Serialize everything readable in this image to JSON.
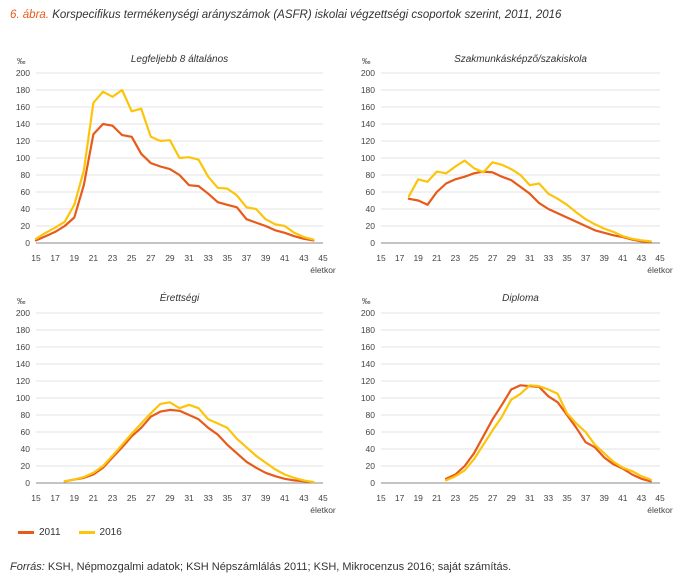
{
  "figure": {
    "number": "6. ábra.",
    "title": "Korspecifikus termékenységi arányszámok (ASFR) iskolai végzettségi csoportok szerint, 2011, 2016"
  },
  "colors": {
    "s2011": "#e85a1a",
    "s2016": "#fcc40a",
    "grid": "#e3e3e3",
    "axis": "#888888"
  },
  "legend": [
    {
      "label": "2011",
      "color": "#e85a1a"
    },
    {
      "label": "2016",
      "color": "#fcc40a"
    }
  ],
  "source": {
    "lead": "Forrás:",
    "text": " KSH, Népmozgalmi adatok; KSH Népszámlálás 2011; KSH, Mikrocenzus 2016; saját számítás."
  },
  "chart_data": [
    {
      "type": "line",
      "title": "Legfeljebb 8 általános",
      "ylabel": "‰",
      "xlabel": "életkor",
      "xlim": [
        15,
        45
      ],
      "ylim": [
        0,
        200
      ],
      "xticks": [
        15,
        17,
        19,
        21,
        23,
        25,
        27,
        29,
        31,
        33,
        35,
        37,
        39,
        41,
        43,
        45
      ],
      "yticks": [
        0,
        20,
        40,
        60,
        80,
        100,
        120,
        140,
        160,
        180,
        200
      ],
      "series": [
        {
          "name": "2011",
          "x": [
            15,
            16,
            17,
            18,
            19,
            20,
            21,
            22,
            23,
            24,
            25,
            26,
            27,
            28,
            29,
            30,
            31,
            32,
            33,
            34,
            35,
            36,
            37,
            38,
            39,
            40,
            41,
            42,
            43,
            44
          ],
          "values": [
            3,
            8,
            13,
            20,
            30,
            68,
            128,
            140,
            138,
            127,
            125,
            105,
            94,
            90,
            87,
            80,
            68,
            67,
            58,
            48,
            45,
            42,
            28,
            24,
            20,
            15,
            12,
            8,
            5,
            3
          ]
        },
        {
          "name": "2016",
          "x": [
            15,
            16,
            17,
            18,
            19,
            20,
            21,
            22,
            23,
            24,
            25,
            26,
            27,
            28,
            29,
            30,
            31,
            32,
            33,
            34,
            35,
            36,
            37,
            38,
            39,
            40,
            41,
            42,
            43,
            44
          ],
          "values": [
            5,
            12,
            18,
            25,
            45,
            85,
            165,
            178,
            172,
            180,
            155,
            158,
            125,
            120,
            121,
            100,
            101,
            98,
            78,
            65,
            64,
            56,
            42,
            40,
            28,
            22,
            20,
            12,
            7,
            4
          ]
        }
      ]
    },
    {
      "type": "line",
      "title": "Szakmunkásképző/szakiskola",
      "ylabel": "‰",
      "xlabel": "életkor",
      "xlim": [
        15,
        45
      ],
      "ylim": [
        0,
        200
      ],
      "xticks": [
        15,
        17,
        19,
        21,
        23,
        25,
        27,
        29,
        31,
        33,
        35,
        37,
        39,
        41,
        43,
        45
      ],
      "yticks": [
        0,
        20,
        40,
        60,
        80,
        100,
        120,
        140,
        160,
        180,
        200
      ],
      "series": [
        {
          "name": "2011",
          "x": [
            18,
            19,
            20,
            21,
            22,
            23,
            24,
            25,
            26,
            27,
            28,
            29,
            30,
            31,
            32,
            33,
            34,
            35,
            36,
            37,
            38,
            39,
            40,
            41,
            42,
            43,
            44
          ],
          "values": [
            52,
            50,
            45,
            60,
            70,
            75,
            78,
            82,
            84,
            83,
            78,
            74,
            66,
            58,
            47,
            40,
            35,
            30,
            25,
            20,
            15,
            12,
            9,
            7,
            4,
            2,
            1
          ]
        },
        {
          "name": "2016",
          "x": [
            18,
            19,
            20,
            21,
            22,
            23,
            24,
            25,
            26,
            27,
            28,
            29,
            30,
            31,
            32,
            33,
            34,
            35,
            36,
            37,
            38,
            39,
            40,
            41,
            42,
            43,
            44
          ],
          "values": [
            55,
            75,
            72,
            84,
            82,
            90,
            97,
            88,
            83,
            95,
            92,
            87,
            80,
            68,
            70,
            58,
            52,
            45,
            36,
            28,
            22,
            17,
            13,
            8,
            5,
            3,
            2
          ]
        }
      ]
    },
    {
      "type": "line",
      "title": "Érettségi",
      "ylabel": "‰",
      "xlabel": "életkor",
      "xlim": [
        15,
        45
      ],
      "ylim": [
        0,
        200
      ],
      "xticks": [
        15,
        17,
        19,
        21,
        23,
        25,
        27,
        29,
        31,
        33,
        35,
        37,
        39,
        41,
        43,
        45
      ],
      "yticks": [
        0,
        20,
        40,
        60,
        80,
        100,
        120,
        140,
        160,
        180,
        200
      ],
      "series": [
        {
          "name": "2011",
          "x": [
            18,
            19,
            20,
            21,
            22,
            23,
            24,
            25,
            26,
            27,
            28,
            29,
            30,
            31,
            32,
            33,
            34,
            35,
            36,
            37,
            38,
            39,
            40,
            41,
            42,
            43,
            44
          ],
          "values": [
            2,
            4,
            6,
            10,
            18,
            30,
            42,
            55,
            65,
            78,
            84,
            86,
            85,
            80,
            75,
            65,
            57,
            45,
            35,
            25,
            18,
            12,
            8,
            5,
            3,
            2,
            1
          ]
        },
        {
          "name": "2016",
          "x": [
            18,
            19,
            20,
            21,
            22,
            23,
            24,
            25,
            26,
            27,
            28,
            29,
            30,
            31,
            32,
            33,
            34,
            35,
            36,
            37,
            38,
            39,
            40,
            41,
            42,
            43,
            44
          ],
          "values": [
            2,
            4,
            7,
            12,
            20,
            32,
            45,
            58,
            70,
            82,
            93,
            95,
            88,
            92,
            88,
            75,
            70,
            65,
            52,
            42,
            32,
            24,
            16,
            10,
            6,
            3,
            1
          ]
        }
      ]
    },
    {
      "type": "line",
      "title": "Diploma",
      "ylabel": "‰",
      "xlabel": "életkor",
      "xlim": [
        15,
        45
      ],
      "ylim": [
        0,
        200
      ],
      "xticks": [
        15,
        17,
        19,
        21,
        23,
        25,
        27,
        29,
        31,
        33,
        35,
        37,
        39,
        41,
        43,
        45
      ],
      "yticks": [
        0,
        20,
        40,
        60,
        80,
        100,
        120,
        140,
        160,
        180,
        200
      ],
      "series": [
        {
          "name": "2011",
          "x": [
            22,
            23,
            24,
            25,
            26,
            27,
            28,
            29,
            30,
            31,
            32,
            33,
            34,
            35,
            36,
            37,
            38,
            39,
            40,
            41,
            42,
            43,
            44
          ],
          "values": [
            5,
            10,
            20,
            35,
            55,
            75,
            92,
            110,
            115,
            114,
            113,
            102,
            95,
            80,
            65,
            48,
            42,
            30,
            22,
            17,
            10,
            5,
            2
          ]
        },
        {
          "name": "2016",
          "x": [
            22,
            23,
            24,
            25,
            26,
            27,
            28,
            29,
            30,
            31,
            32,
            33,
            34,
            35,
            36,
            37,
            38,
            39,
            40,
            41,
            42,
            43,
            44
          ],
          "values": [
            3,
            8,
            15,
            28,
            45,
            62,
            78,
            98,
            105,
            115,
            114,
            110,
            105,
            82,
            70,
            60,
            45,
            35,
            25,
            18,
            14,
            8,
            4
          ]
        }
      ]
    }
  ]
}
